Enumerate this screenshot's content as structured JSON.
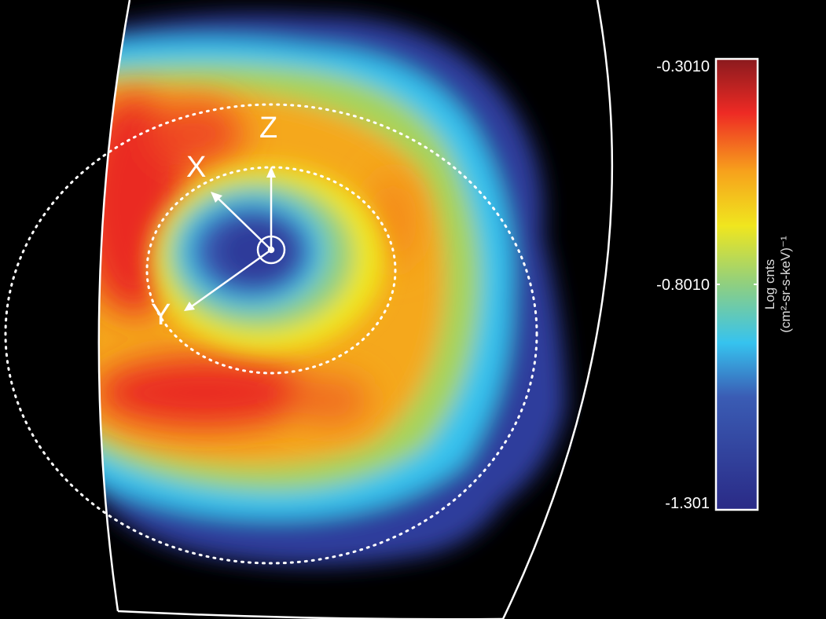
{
  "chart_data": {
    "type": "heatmap",
    "title": "",
    "colorbar": {
      "ticks": [
        "-0.3010",
        "-0.8010",
        "-1.301"
      ],
      "range": [
        -1.301,
        -0.301
      ],
      "label_line1": "Log cnts",
      "label_line2": "(cm²-sr-s-keV)⁻¹",
      "colormap": [
        "#2a2a86",
        "#3a5cb4",
        "#36c3ef",
        "#8fcf80",
        "#f0e61e",
        "#f7a21c",
        "#ee2a24",
        "#8a1a1e"
      ]
    },
    "axes_labels": {
      "z": "Z",
      "x": "X",
      "y": "Y"
    },
    "description_of_pattern": "ring of high counts surrounding a low-count center",
    "dotted_circles": 2
  }
}
